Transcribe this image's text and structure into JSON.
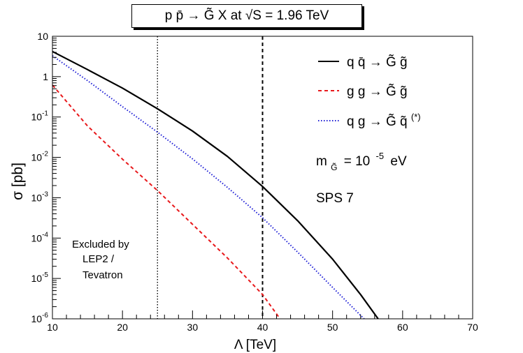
{
  "chart_data": {
    "type": "line",
    "title": "p p̄ → G̃ X  at  √S = 1.96 TeV",
    "xlabel": "Λ  [TeV]",
    "ylabel": "σ [pb]",
    "xlim": [
      10,
      70
    ],
    "ylim": [
      1e-06,
      10
    ],
    "yscale": "log",
    "x_ticks": [
      "10",
      "20",
      "30",
      "40",
      "50",
      "60",
      "70"
    ],
    "y_ticks": [
      {
        "base": "10",
        "exp": "-6"
      },
      {
        "base": "10",
        "exp": "-5"
      },
      {
        "base": "10",
        "exp": "-4"
      },
      {
        "base": "10",
        "exp": "-3"
      },
      {
        "base": "10",
        "exp": "-2"
      },
      {
        "base": "10",
        "exp": "-1"
      },
      {
        "base": "1",
        "exp": ""
      },
      {
        "base": "10",
        "exp": ""
      }
    ],
    "series": [
      {
        "name": "q q̄ → G̃ g̃",
        "color": "#000000",
        "style": "solid",
        "x": [
          10,
          15,
          20,
          25,
          30,
          35,
          40,
          45,
          50,
          54,
          56.5
        ],
        "y": [
          4.2,
          1.5,
          0.52,
          0.16,
          0.045,
          0.0105,
          0.0019,
          0.00027,
          3e-05,
          4e-06,
          1e-06
        ]
      },
      {
        "name": "g g → G̃ g̃",
        "color": "#e8191c",
        "style": "dashed",
        "x": [
          10,
          15,
          20,
          25,
          30,
          35,
          40,
          42.5
        ],
        "y": [
          0.62,
          0.06,
          0.009,
          0.0015,
          0.00022,
          3.2e-05,
          4e-06,
          1e-06
        ]
      },
      {
        "name": "q g → G̃ q̃",
        "superscript": "(*)",
        "color": "#1f1fd6",
        "style": "dotted",
        "x": [
          10,
          15,
          20,
          25,
          30,
          35,
          40,
          45,
          50,
          54.5
        ],
        "y": [
          3.3,
          0.8,
          0.18,
          0.042,
          0.0092,
          0.0018,
          0.00032,
          4.5e-05,
          6e-06,
          1e-06
        ]
      }
    ],
    "vertical_lines": [
      {
        "x": 25,
        "style": "dotted"
      },
      {
        "x": 40,
        "style": "dashed"
      }
    ],
    "annotations": {
      "mass": "m",
      "mass_sub": "G̃",
      "mass_value": "= 10",
      "mass_exp": "-5",
      "mass_unit": "eV",
      "model": "SPS 7",
      "excluded_line1": "Excluded by",
      "excluded_line2": "LEP2 /",
      "excluded_line3": "Tevatron"
    }
  }
}
